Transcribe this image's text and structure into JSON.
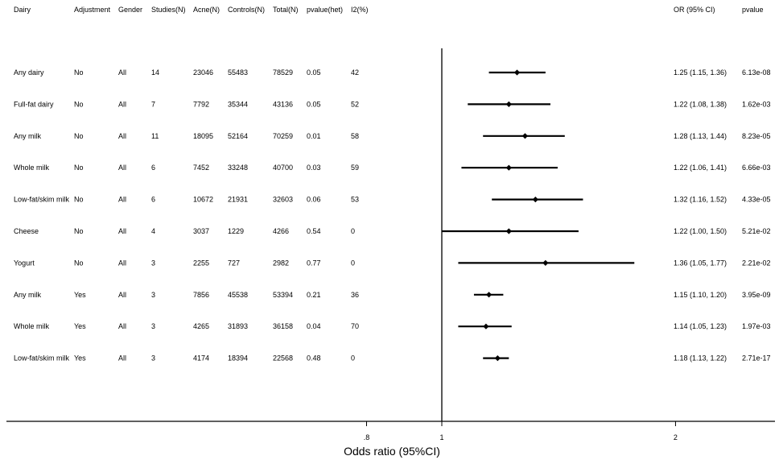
{
  "chart_data": {
    "type": "forest",
    "columns": {
      "dairy": "Dairy",
      "adjustment": "Adjustment",
      "gender": "Gender",
      "studies": "Studies(N)",
      "acne": "Acne(N)",
      "controls": "Controls(N)",
      "total": "Total(N)",
      "phet": "pvalue(het)",
      "i2": "I2(%)",
      "or": "OR (95% CI)",
      "pvalue": "pvalue"
    },
    "xlabel": "Odds ratio (95%CI)",
    "x_scale": "log",
    "x_ticks": [
      {
        "value": 0.8,
        "label": ".8"
      },
      {
        "value": 1,
        "label": "1"
      },
      {
        "value": 2,
        "label": "2"
      }
    ],
    "reference_line": 1,
    "rows": [
      {
        "dairy": "Any dairy",
        "adjustment": "No",
        "gender": "All",
        "studies": "14",
        "acne": "23046",
        "controls": "55483",
        "total": "78529",
        "phet": "0.05",
        "i2": "42",
        "or_text": "1.25 (1.15, 1.36)",
        "pvalue": "6.13e-08",
        "or": 1.25,
        "lo": 1.15,
        "hi": 1.36
      },
      {
        "dairy": "Full-fat dairy",
        "adjustment": "No",
        "gender": "All",
        "studies": "7",
        "acne": "7792",
        "controls": "35344",
        "total": "43136",
        "phet": "0.05",
        "i2": "52",
        "or_text": "1.22 (1.08, 1.38)",
        "pvalue": "1.62e-03",
        "or": 1.22,
        "lo": 1.08,
        "hi": 1.38
      },
      {
        "dairy": "Any milk",
        "adjustment": "No",
        "gender": "All",
        "studies": "11",
        "acne": "18095",
        "controls": "52164",
        "total": "70259",
        "phet": "0.01",
        "i2": "58",
        "or_text": "1.28 (1.13, 1.44)",
        "pvalue": "8.23e-05",
        "or": 1.28,
        "lo": 1.13,
        "hi": 1.44
      },
      {
        "dairy": "Whole milk",
        "adjustment": "No",
        "gender": "All",
        "studies": "6",
        "acne": "7452",
        "controls": "33248",
        "total": "40700",
        "phet": "0.03",
        "i2": "59",
        "or_text": "1.22 (1.06, 1.41)",
        "pvalue": "6.66e-03",
        "or": 1.22,
        "lo": 1.06,
        "hi": 1.41
      },
      {
        "dairy": "Low-fat/skim milk",
        "adjustment": "No",
        "gender": "All",
        "studies": "6",
        "acne": "10672",
        "controls": "21931",
        "total": "32603",
        "phet": "0.06",
        "i2": "53",
        "or_text": "1.32 (1.16, 1.52)",
        "pvalue": "4.33e-05",
        "or": 1.32,
        "lo": 1.16,
        "hi": 1.52
      },
      {
        "dairy": "Cheese",
        "adjustment": "No",
        "gender": "All",
        "studies": "4",
        "acne": "3037",
        "controls": "1229",
        "total": "4266",
        "phet": "0.54",
        "i2": "0",
        "or_text": "1.22 (1.00, 1.50)",
        "pvalue": "5.21e-02",
        "or": 1.22,
        "lo": 1.0,
        "hi": 1.5
      },
      {
        "dairy": "Yogurt",
        "adjustment": "No",
        "gender": "All",
        "studies": "3",
        "acne": "2255",
        "controls": "727",
        "total": "2982",
        "phet": "0.77",
        "i2": "0",
        "or_text": "1.36 (1.05, 1.77)",
        "pvalue": "2.21e-02",
        "or": 1.36,
        "lo": 1.05,
        "hi": 1.77
      },
      {
        "dairy": "Any milk",
        "adjustment": "Yes",
        "gender": "All",
        "studies": "3",
        "acne": "7856",
        "controls": "45538",
        "total": "53394",
        "phet": "0.21",
        "i2": "36",
        "or_text": "1.15 (1.10, 1.20)",
        "pvalue": "3.95e-09",
        "or": 1.15,
        "lo": 1.1,
        "hi": 1.2
      },
      {
        "dairy": "Whole milk",
        "adjustment": "Yes",
        "gender": "All",
        "studies": "3",
        "acne": "4265",
        "controls": "31893",
        "total": "36158",
        "phet": "0.04",
        "i2": "70",
        "or_text": "1.14 (1.05, 1.23)",
        "pvalue": "1.97e-03",
        "or": 1.14,
        "lo": 1.05,
        "hi": 1.23
      },
      {
        "dairy": "Low-fat/skim milk",
        "adjustment": "Yes",
        "gender": "All",
        "studies": "3",
        "acne": "4174",
        "controls": "18394",
        "total": "22568",
        "phet": "0.48",
        "i2": "0",
        "or_text": "1.18 (1.13, 1.22)",
        "pvalue": "2.71e-17",
        "or": 1.18,
        "lo": 1.13,
        "hi": 1.22
      }
    ]
  }
}
